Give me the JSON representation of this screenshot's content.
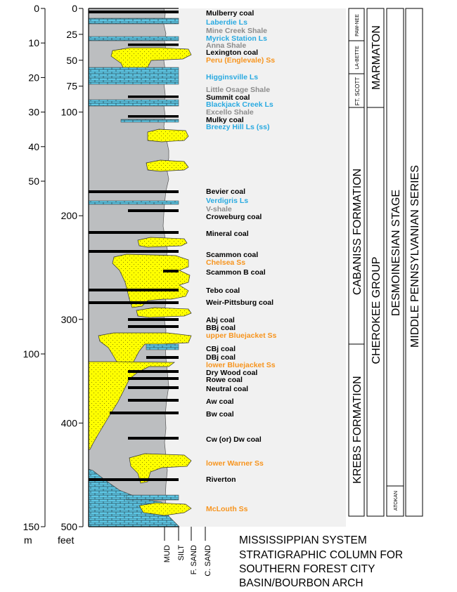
{
  "scales": {
    "meters": {
      "unit_label": "m",
      "ticks": [
        {
          "label": "0",
          "value": 0
        },
        {
          "label": "10",
          "value": 10
        },
        {
          "label": "20",
          "value": 20
        },
        {
          "label": "30",
          "value": 30
        },
        {
          "label": "40",
          "value": 40
        },
        {
          "label": "50",
          "value": 50
        },
        {
          "label": "100",
          "value": 100
        },
        {
          "label": "150",
          "value": 150
        }
      ]
    },
    "feet": {
      "unit_label": "feet",
      "ticks": [
        {
          "label": "0",
          "value": 0
        },
        {
          "label": "25",
          "value": 25
        },
        {
          "label": "50",
          "value": 50
        },
        {
          "label": "75",
          "value": 75
        },
        {
          "label": "100",
          "value": 100
        },
        {
          "label": "200",
          "value": 200
        },
        {
          "label": "300",
          "value": 300
        },
        {
          "label": "400",
          "value": 400
        },
        {
          "label": "500",
          "value": 500
        }
      ]
    }
  },
  "beds": [
    {
      "name": "Mulberry coal",
      "type": "coal"
    },
    {
      "name": "Laberdie Ls",
      "type": "limestone"
    },
    {
      "name": "Mine Creek Shale",
      "type": "shale"
    },
    {
      "name": "Myrick Station Ls",
      "type": "limestone"
    },
    {
      "name": "Anna Shale",
      "type": "shale"
    },
    {
      "name": "Lexington coal",
      "type": "coal"
    },
    {
      "name": "Peru (Englevale) Ss",
      "type": "sandstone"
    },
    {
      "name": "Higginsville Ls",
      "type": "limestone"
    },
    {
      "name": "Little Osage Shale",
      "type": "shale"
    },
    {
      "name": "Summit coal",
      "type": "coal"
    },
    {
      "name": "Blackjack Creek Ls",
      "type": "limestone"
    },
    {
      "name": "Excello Shale",
      "type": "shale"
    },
    {
      "name": "Mulky coal",
      "type": "coal"
    },
    {
      "name": "Breezy Hill Ls (ss)",
      "type": "limestone"
    },
    {
      "name": "Bevier coal",
      "type": "coal"
    },
    {
      "name": "Verdigris Ls",
      "type": "limestone"
    },
    {
      "name": "V-shale",
      "type": "shale"
    },
    {
      "name": "Croweburg coal",
      "type": "coal"
    },
    {
      "name": "Mineral coal",
      "type": "coal"
    },
    {
      "name": "Scammon coal",
      "type": "coal"
    },
    {
      "name": "Chelsea Ss",
      "type": "sandstone"
    },
    {
      "name": "Scammon B coal",
      "type": "coal"
    },
    {
      "name": "Tebo coal",
      "type": "coal"
    },
    {
      "name": "Weir-Pittsburg coal",
      "type": "coal"
    },
    {
      "name": "Abj coal",
      "type": "coal"
    },
    {
      "name": "BBj coal",
      "type": "coal"
    },
    {
      "name": "upper Bluejacket Ss",
      "type": "sandstone"
    },
    {
      "name": "CBj coal",
      "type": "coal"
    },
    {
      "name": "DBj coal",
      "type": "coal"
    },
    {
      "name": "lower Bluejacket Ss",
      "type": "sandstone"
    },
    {
      "name": "Dry Wood coal",
      "type": "coal"
    },
    {
      "name": "Rowe coal",
      "type": "coal"
    },
    {
      "name": "Neutral coal",
      "type": "coal"
    },
    {
      "name": "Aw coal",
      "type": "coal"
    },
    {
      "name": "Bw coal",
      "type": "coal"
    },
    {
      "name": "Cw (or) Dw coal",
      "type": "coal"
    },
    {
      "name": "lower Warner Ss",
      "type": "sandstone"
    },
    {
      "name": "Riverton",
      "type": "coal"
    },
    {
      "name": "McLouth Ss",
      "type": "sandstone"
    }
  ],
  "units": {
    "subgroups": [
      "PAW-NEE",
      "LA-BETTE",
      "FT. SCOTT"
    ],
    "formations": [
      "CABANISS FORMATION",
      "KREBS FORMATION"
    ],
    "groups": [
      "MARMATON",
      "CHEROKEE GROUP"
    ],
    "stages": [
      "DESMOINESIAN STAGE",
      "ATOKAN"
    ],
    "series": "MIDDLE PENNSYLVANIAN SERIES"
  },
  "grain_size_labels": [
    "MUD",
    "SILT",
    "F. SAND",
    "C. SAND"
  ],
  "basal_system": "MISSISSIPPIAN SYSTEM",
  "caption_lines": [
    "STRATIGRAPHIC COLUMN FOR",
    "SOUTHERN FOREST CITY",
    "BASIN/BOURBON ARCH"
  ],
  "colors": {
    "coal": "#000000",
    "limestone": "#29aae1",
    "shale": "#8c8c8c",
    "sandstone": "#f7941d",
    "sand_fill": "#ffff00",
    "mud_fill": "#bcbec0",
    "background": "#f1f1f1"
  }
}
